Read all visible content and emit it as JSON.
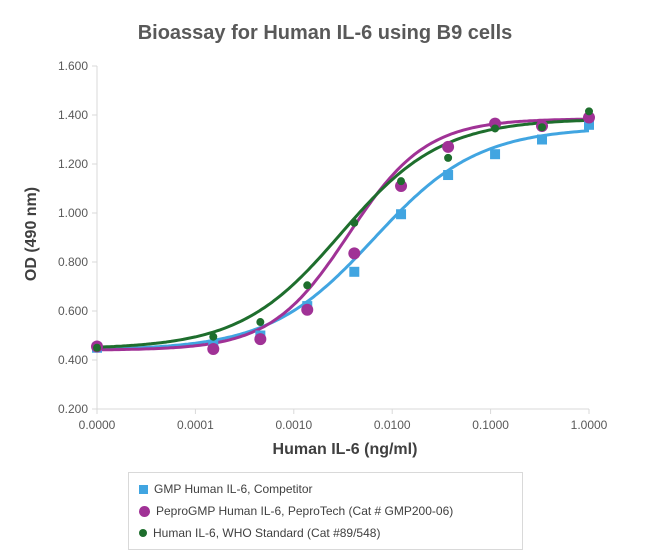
{
  "chart_data": {
    "type": "scatter",
    "title": "Bioassay for Human IL-6 using B9 cells",
    "xlabel": "Human IL-6 (ng/ml)",
    "ylabel": "OD (490 nm)",
    "xscale": "log",
    "xlim": [
      1e-05,
      1
    ],
    "ylim": [
      0.2,
      1.6
    ],
    "x_tick_labels": [
      "0.0000",
      "0.0001",
      "0.0010",
      "0.0100",
      "0.1000",
      "1.0000"
    ],
    "y_tick_labels": [
      "0.200",
      "0.400",
      "0.600",
      "0.800",
      "1.000",
      "1.200",
      "1.400",
      "1.600"
    ],
    "grid": false,
    "legend_position": "bottom",
    "x": [
      1e-05,
      0.000152,
      0.000457,
      0.00137,
      0.00412,
      0.0123,
      0.037,
      0.111,
      0.333,
      1.0
    ],
    "series": [
      {
        "name": "GMP Human IL-6, Competitor",
        "color": "#41a5e1",
        "marker": "square",
        "values": [
          0.45,
          0.46,
          0.5,
          0.62,
          0.76,
          0.995,
          1.155,
          1.24,
          1.3,
          1.36
        ]
      },
      {
        "name": "PeproGMP Human IL-6, PeproTech (Cat # GMP200-06)",
        "color": "#a03296",
        "marker": "circle-large",
        "values": [
          0.455,
          0.445,
          0.485,
          0.605,
          0.835,
          1.11,
          1.27,
          1.365,
          1.355,
          1.39
        ]
      },
      {
        "name": "Human IL-6, WHO Standard (Cat #89/548)",
        "color": "#1e6e2d",
        "marker": "circle-small",
        "values": [
          0.45,
          0.495,
          0.555,
          0.705,
          0.96,
          1.13,
          1.225,
          1.345,
          1.35,
          1.415
        ]
      }
    ],
    "trendline": "sigmoidal fit"
  }
}
